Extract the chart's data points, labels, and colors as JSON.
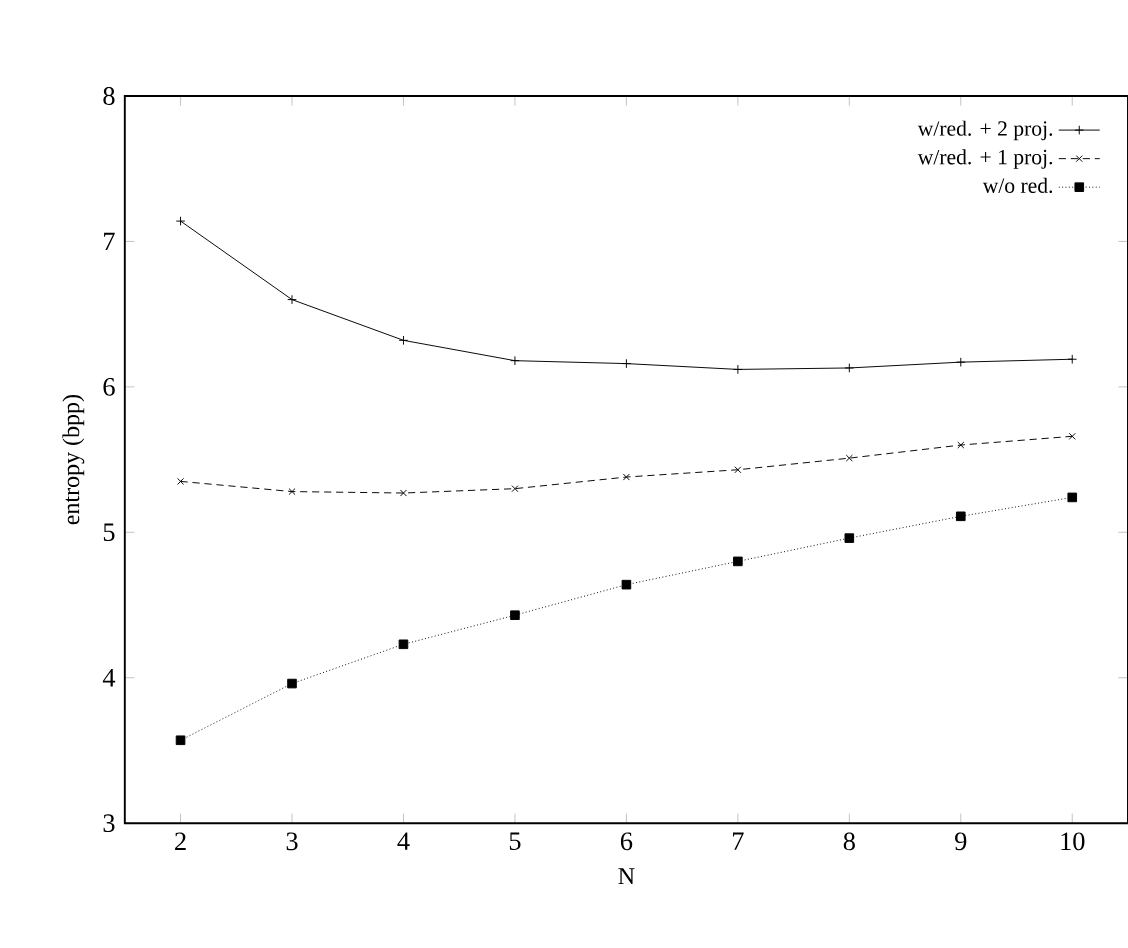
{
  "chart_data": {
    "type": "line",
    "xlabel": "N",
    "ylabel": "entropy (bpp)",
    "x": [
      2,
      3,
      4,
      5,
      6,
      7,
      8,
      9,
      10
    ],
    "xlim": [
      1.5,
      10.5
    ],
    "xticks": [
      2,
      3,
      4,
      5,
      6,
      7,
      8,
      9,
      10
    ],
    "ylim": [
      3,
      8
    ],
    "yticks": [
      3,
      4,
      5,
      6,
      7,
      8
    ],
    "grid": false,
    "legend": "top right",
    "series": [
      {
        "name": "w/red. + 2 proj.",
        "color": "#000000",
        "marker": "plus",
        "line_style": "solid",
        "values": [
          7.14,
          6.6,
          6.32,
          6.18,
          6.16,
          6.12,
          6.13,
          6.17,
          6.19
        ]
      },
      {
        "name": "w/red. + 1 proj.",
        "color": "#000000",
        "marker": "cross",
        "line_style": "dashed",
        "values": [
          5.35,
          5.28,
          5.27,
          5.3,
          5.38,
          5.43,
          5.51,
          5.6,
          5.66
        ]
      },
      {
        "name": "w/o red.",
        "color": "#000000",
        "marker": "square",
        "line_style": "dotted",
        "values": [
          3.57,
          3.96,
          4.23,
          4.43,
          4.64,
          4.8,
          4.96,
          5.11,
          5.24
        ]
      }
    ]
  }
}
